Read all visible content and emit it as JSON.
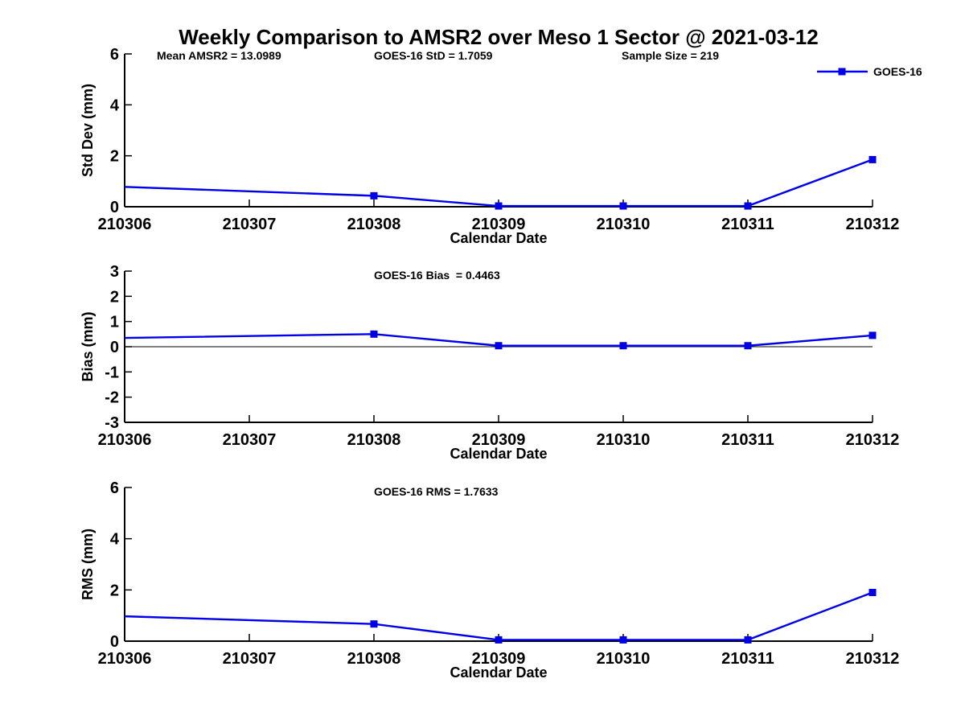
{
  "chart_data": {
    "type": "line",
    "title": "Weekly Comparison to AMSR2 over Meso 1 Sector @ 2021-03-12",
    "xlabel": "Calendar Date",
    "x_ticks": [
      "210306",
      "210307",
      "210308",
      "210309",
      "210310",
      "210311",
      "210312"
    ],
    "series_name": "GOES-16",
    "line_color": "#0000E6",
    "axis_color": "#000000",
    "legend_position": "top-right-first-subplot",
    "grid": false,
    "subplots": [
      {
        "name": "std-dev",
        "ylabel": "Std Dev (mm)",
        "ylim": [
          0,
          6
        ],
        "yticks": [
          0,
          2,
          4,
          6
        ],
        "zero_line": false,
        "show_legend": true,
        "annotations": [
          "Mean AMSR2 = 13.0989",
          "GOES-16 StD = 1.7059",
          "Sample Size = 219"
        ],
        "points": [
          {
            "date": "210306",
            "value": 0.78,
            "marker": false
          },
          {
            "date": "210308",
            "value": 0.43,
            "marker": true
          },
          {
            "date": "210309",
            "value": 0.03,
            "marker": true
          },
          {
            "date": "210310",
            "value": 0.03,
            "marker": true
          },
          {
            "date": "210311",
            "value": 0.03,
            "marker": true
          },
          {
            "date": "210312",
            "value": 1.85,
            "marker": true
          }
        ]
      },
      {
        "name": "bias",
        "ylabel": "Bias (mm)",
        "ylim": [
          -3,
          3
        ],
        "yticks": [
          -3,
          -2,
          -1,
          0,
          1,
          2,
          3
        ],
        "zero_line": true,
        "show_legend": false,
        "annotations": [
          "GOES-16 Bias  = 0.4463"
        ],
        "points": [
          {
            "date": "210306",
            "value": 0.35,
            "marker": false
          },
          {
            "date": "210308",
            "value": 0.5,
            "marker": true
          },
          {
            "date": "210309",
            "value": 0.04,
            "marker": true
          },
          {
            "date": "210310",
            "value": 0.04,
            "marker": true
          },
          {
            "date": "210311",
            "value": 0.04,
            "marker": true
          },
          {
            "date": "210312",
            "value": 0.45,
            "marker": true
          }
        ]
      },
      {
        "name": "rms",
        "ylabel": "RMS (mm)",
        "ylim": [
          0,
          6
        ],
        "yticks": [
          0,
          2,
          4,
          6
        ],
        "zero_line": false,
        "show_legend": false,
        "annotations": [
          "GOES-16 RMS = 1.7633"
        ],
        "points": [
          {
            "date": "210306",
            "value": 0.97,
            "marker": false
          },
          {
            "date": "210308",
            "value": 0.67,
            "marker": true
          },
          {
            "date": "210309",
            "value": 0.05,
            "marker": true
          },
          {
            "date": "210310",
            "value": 0.05,
            "marker": true
          },
          {
            "date": "210311",
            "value": 0.05,
            "marker": true
          },
          {
            "date": "210312",
            "value": 1.9,
            "marker": true
          }
        ]
      }
    ]
  }
}
